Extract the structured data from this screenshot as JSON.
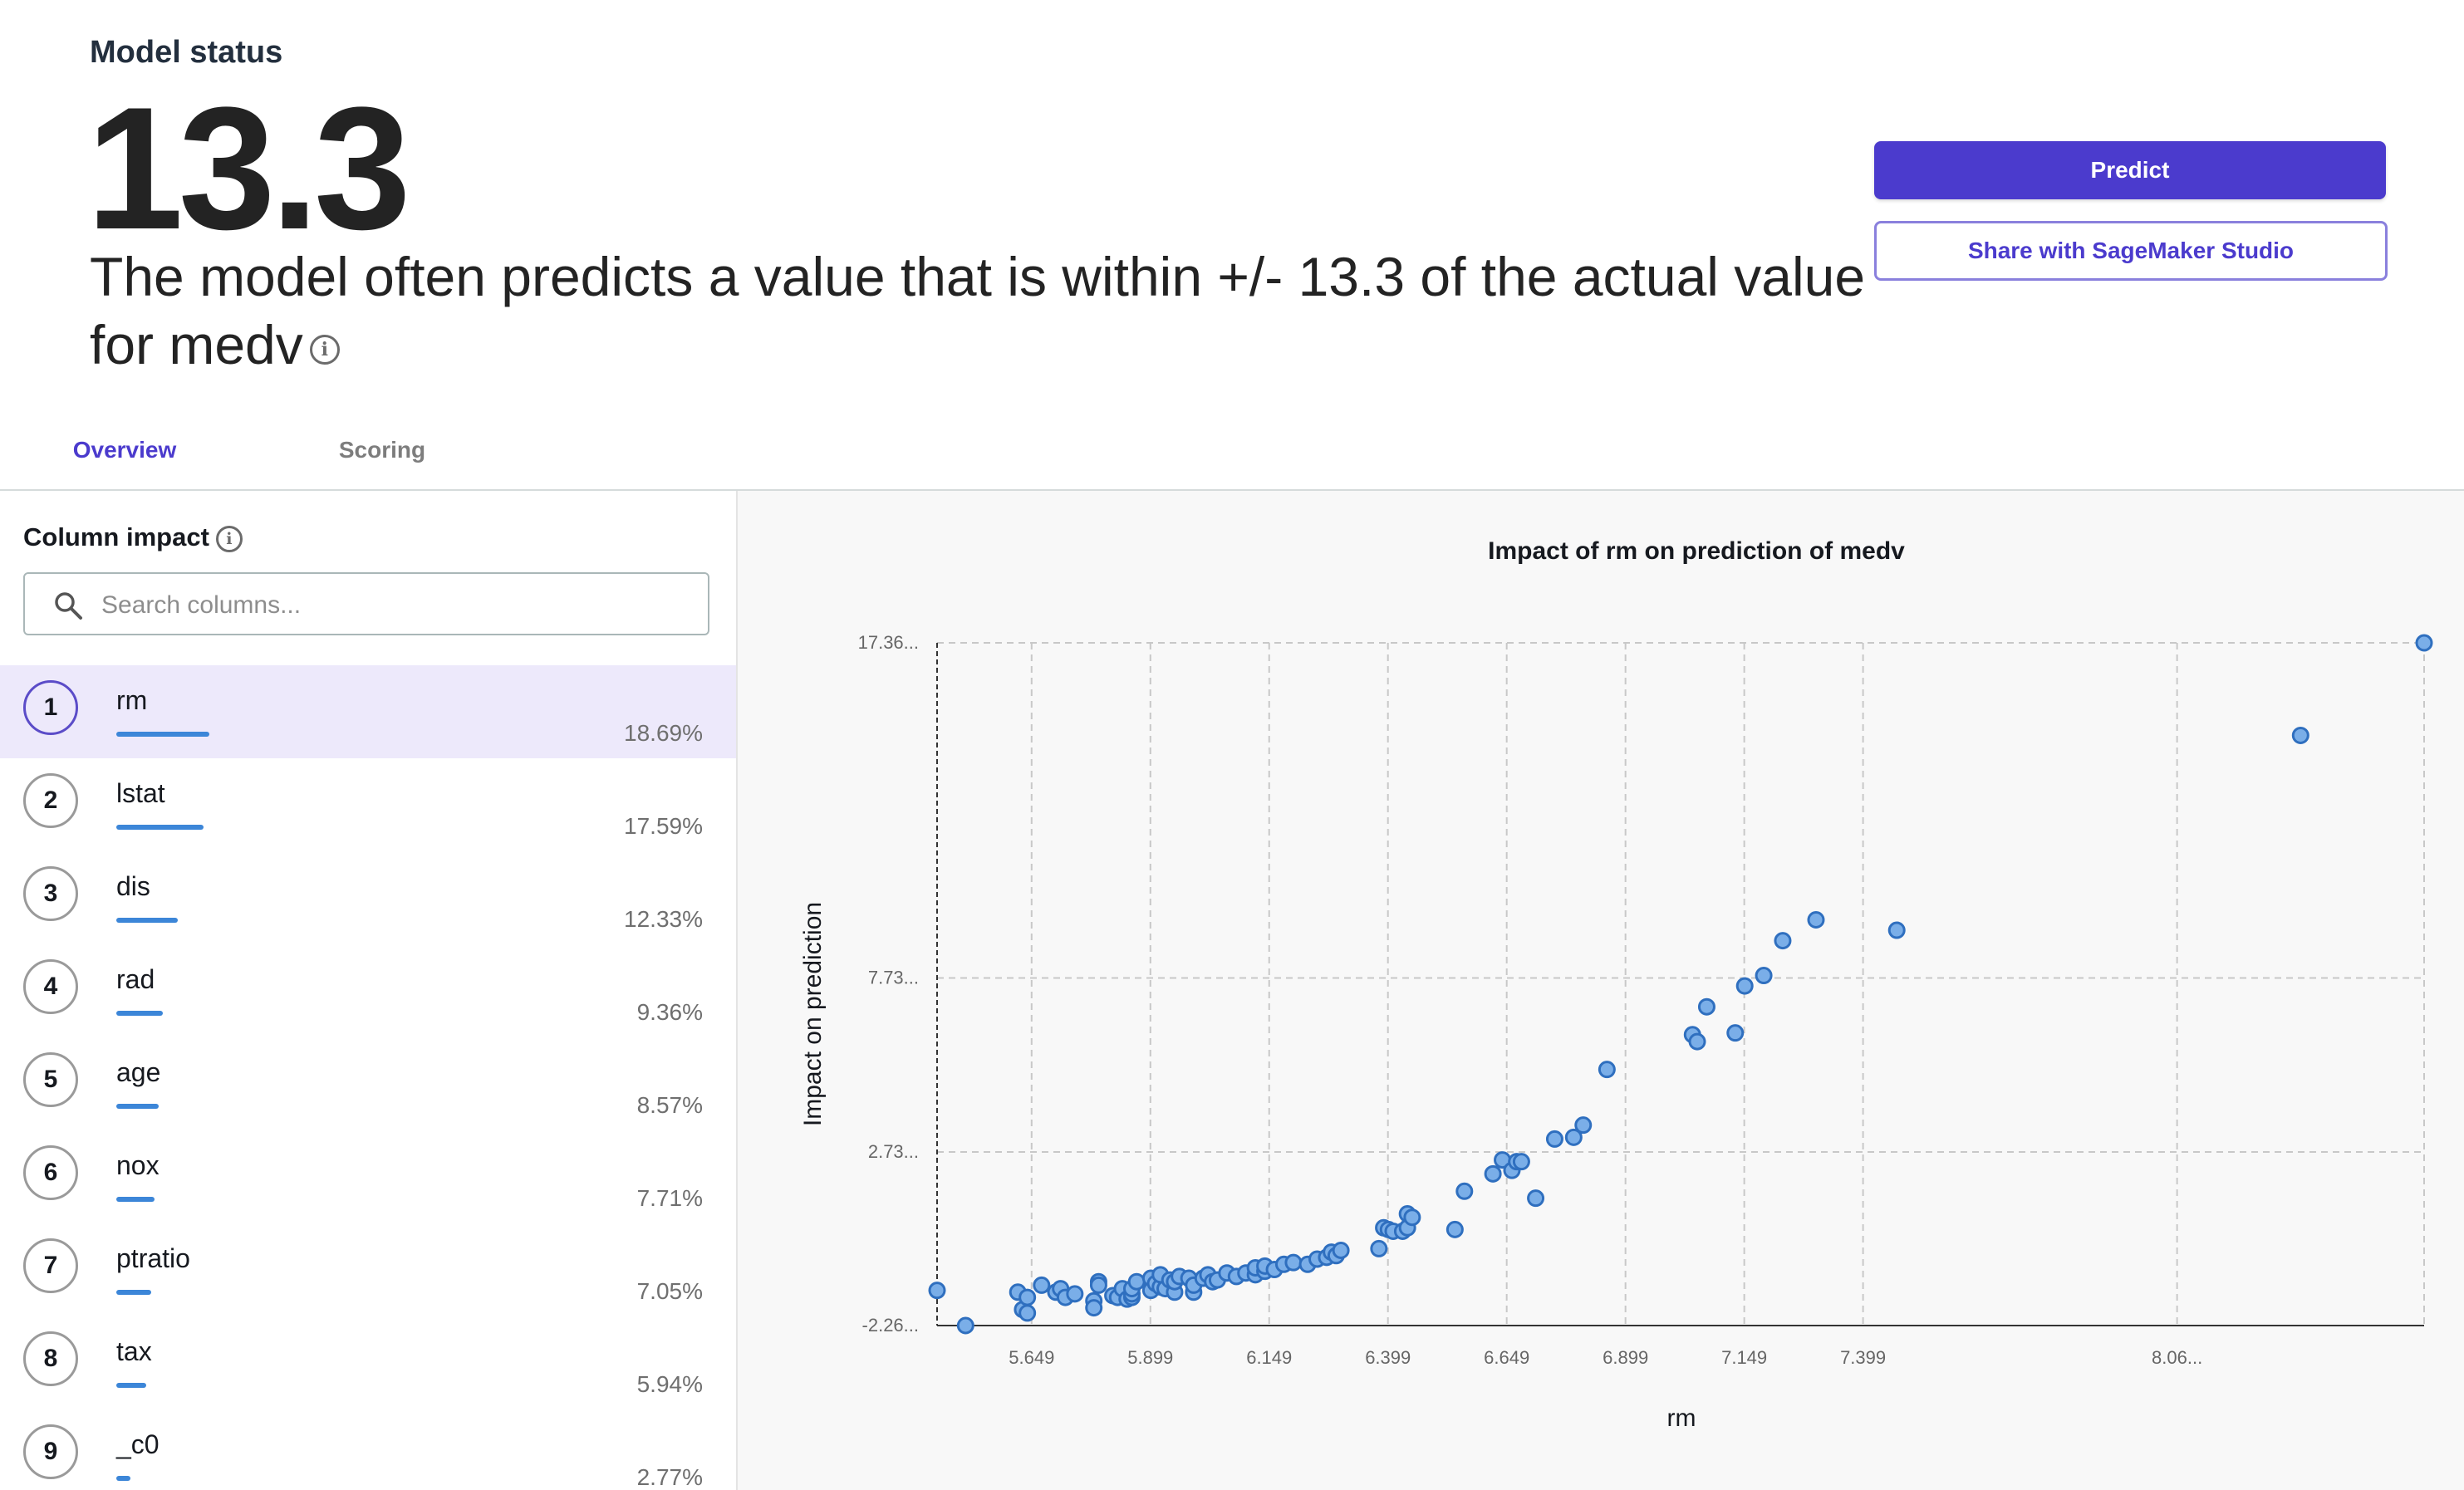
{
  "header": {
    "status_label": "Model status",
    "value": "13.3",
    "description": "The model often predicts a value that is within +/- 13.3 of the actual value for medv",
    "info_icon": "info-icon"
  },
  "buttons": {
    "predict": "Predict",
    "share": "Share with SageMaker Studio"
  },
  "tabs": [
    {
      "label": "Overview",
      "active": true
    },
    {
      "label": "Scoring",
      "active": false
    }
  ],
  "column_impact": {
    "title": "Column impact",
    "search_placeholder": "Search columns...",
    "selected": "rm",
    "items": [
      {
        "rank": "1",
        "name": "rm",
        "pct": "18.69%",
        "value": 18.69
      },
      {
        "rank": "2",
        "name": "lstat",
        "pct": "17.59%",
        "value": 17.59
      },
      {
        "rank": "3",
        "name": "dis",
        "pct": "12.33%",
        "value": 12.33
      },
      {
        "rank": "4",
        "name": "rad",
        "pct": "9.36%",
        "value": 9.36
      },
      {
        "rank": "5",
        "name": "age",
        "pct": "8.57%",
        "value": 8.57
      },
      {
        "rank": "6",
        "name": "nox",
        "pct": "7.71%",
        "value": 7.71
      },
      {
        "rank": "7",
        "name": "ptratio",
        "pct": "7.05%",
        "value": 7.05
      },
      {
        "rank": "8",
        "name": "tax",
        "pct": "5.94%",
        "value": 5.94
      },
      {
        "rank": "9",
        "name": "_c0",
        "pct": "2.77%",
        "value": 2.77
      }
    ]
  },
  "colors": {
    "accent": "#4b3bcd",
    "bar": "#3c86d8",
    "point_fill": "#7aaee8",
    "point_stroke": "#2f6fbf"
  },
  "chart_data": {
    "type": "scatter",
    "title": "Impact of rm on prediction of medv",
    "xlabel": "rm",
    "ylabel": "Impact on prediction",
    "xlim": [
      5.45,
      8.58
    ],
    "ylim": [
      -2.26,
      17.36
    ],
    "x_ticks": [
      {
        "v": 5.649,
        "label": "5.649"
      },
      {
        "v": 5.899,
        "label": "5.899"
      },
      {
        "v": 6.149,
        "label": "6.149"
      },
      {
        "v": 6.399,
        "label": "6.399"
      },
      {
        "v": 6.649,
        "label": "6.649"
      },
      {
        "v": 6.899,
        "label": "6.899"
      },
      {
        "v": 7.149,
        "label": "7.149"
      },
      {
        "v": 7.399,
        "label": "7.399"
      },
      {
        "v": 8.06,
        "label": "8.06..."
      }
    ],
    "y_ticks": [
      {
        "v": 17.36,
        "label": "17.36..."
      },
      {
        "v": 7.73,
        "label": "7.73..."
      },
      {
        "v": 2.73,
        "label": "2.73..."
      },
      {
        "v": -2.26,
        "label": "-2.26..."
      }
    ],
    "grid": true,
    "points": [
      [
        5.45,
        -1.25
      ],
      [
        5.51,
        -2.26
      ],
      [
        5.62,
        -1.3
      ],
      [
        5.63,
        -1.8
      ],
      [
        5.64,
        -1.9
      ],
      [
        5.64,
        -1.45
      ],
      [
        5.67,
        -1.1
      ],
      [
        5.7,
        -1.3
      ],
      [
        5.71,
        -1.2
      ],
      [
        5.72,
        -1.45
      ],
      [
        5.74,
        -1.35
      ],
      [
        5.78,
        -1.55
      ],
      [
        5.78,
        -1.75
      ],
      [
        5.79,
        -1.0
      ],
      [
        5.79,
        -1.1
      ],
      [
        5.82,
        -1.4
      ],
      [
        5.83,
        -1.45
      ],
      [
        5.84,
        -1.2
      ],
      [
        5.85,
        -1.5
      ],
      [
        5.86,
        -1.45
      ],
      [
        5.86,
        -1.35
      ],
      [
        5.86,
        -1.2
      ],
      [
        5.87,
        -1.0
      ],
      [
        5.9,
        -0.9
      ],
      [
        5.9,
        -1.25
      ],
      [
        5.91,
        -1.05
      ],
      [
        5.92,
        -1.15
      ],
      [
        5.92,
        -0.8
      ],
      [
        5.93,
        -1.2
      ],
      [
        5.94,
        -0.95
      ],
      [
        5.95,
        -1.3
      ],
      [
        5.95,
        -1.0
      ],
      [
        5.96,
        -0.85
      ],
      [
        5.98,
        -0.9
      ],
      [
        5.99,
        -1.3
      ],
      [
        5.99,
        -1.1
      ],
      [
        6.01,
        -0.9
      ],
      [
        6.02,
        -0.8
      ],
      [
        6.03,
        -1.0
      ],
      [
        6.04,
        -0.95
      ],
      [
        6.06,
        -0.75
      ],
      [
        6.08,
        -0.85
      ],
      [
        6.1,
        -0.75
      ],
      [
        6.12,
        -0.8
      ],
      [
        6.12,
        -0.6
      ],
      [
        6.14,
        -0.7
      ],
      [
        6.14,
        -0.55
      ],
      [
        6.16,
        -0.65
      ],
      [
        6.18,
        -0.5
      ],
      [
        6.2,
        -0.45
      ],
      [
        6.23,
        -0.5
      ],
      [
        6.25,
        -0.35
      ],
      [
        6.27,
        -0.3
      ],
      [
        6.28,
        -0.15
      ],
      [
        6.29,
        -0.25
      ],
      [
        6.3,
        -0.1
      ],
      [
        6.38,
        -0.05
      ],
      [
        6.39,
        0.55
      ],
      [
        6.4,
        0.5
      ],
      [
        6.41,
        0.45
      ],
      [
        6.43,
        0.45
      ],
      [
        6.44,
        0.55
      ],
      [
        6.44,
        0.95
      ],
      [
        6.45,
        0.85
      ],
      [
        6.54,
        0.5
      ],
      [
        6.56,
        1.6
      ],
      [
        6.62,
        2.1
      ],
      [
        6.64,
        2.5
      ],
      [
        6.66,
        2.2
      ],
      [
        6.67,
        2.45
      ],
      [
        6.68,
        2.45
      ],
      [
        6.71,
        1.4
      ],
      [
        6.75,
        3.1
      ],
      [
        6.79,
        3.15
      ],
      [
        6.81,
        3.5
      ],
      [
        6.86,
        5.1
      ],
      [
        7.04,
        6.1
      ],
      [
        7.05,
        5.9
      ],
      [
        7.07,
        6.9
      ],
      [
        7.13,
        6.15
      ],
      [
        7.15,
        7.5
      ],
      [
        7.19,
        7.8
      ],
      [
        7.23,
        8.8
      ],
      [
        7.3,
        9.4
      ],
      [
        7.47,
        9.1
      ],
      [
        8.32,
        14.7
      ],
      [
        8.58,
        17.36
      ]
    ]
  }
}
